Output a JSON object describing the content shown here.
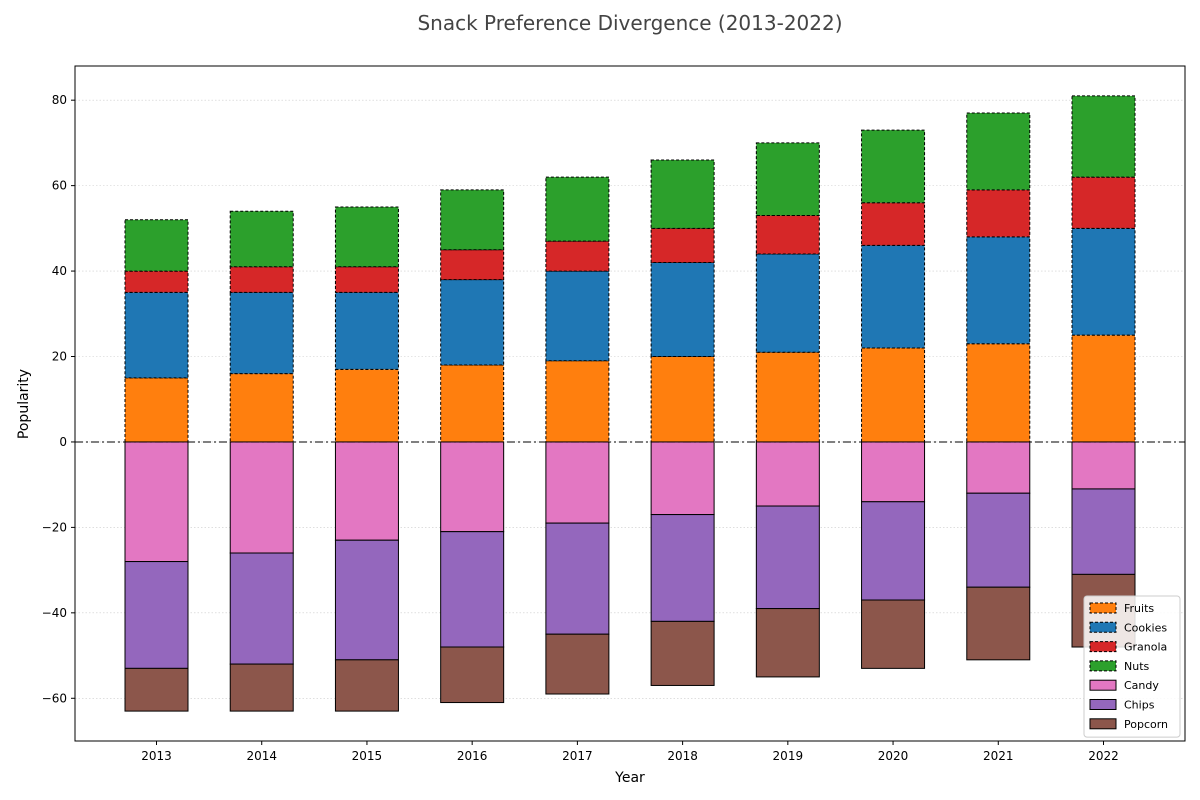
{
  "chart_data": {
    "type": "bar",
    "stacked": true,
    "diverging": true,
    "title": "Snack Preference Divergence (2013-2022)",
    "xlabel": "Year",
    "ylabel": "Popularity",
    "ylim": [
      -70,
      88
    ],
    "yticks": [
      -60,
      -40,
      -20,
      0,
      20,
      40,
      60,
      80
    ],
    "grid": true,
    "legend_position": "lower-right",
    "categories": [
      "2013",
      "2014",
      "2015",
      "2016",
      "2017",
      "2018",
      "2019",
      "2020",
      "2021",
      "2022"
    ],
    "series": [
      {
        "name": "Fruits",
        "color": "#ff7f0e",
        "direction": "positive",
        "values": [
          15,
          16,
          17,
          18,
          19,
          20,
          21,
          22,
          23,
          25
        ]
      },
      {
        "name": "Cookies",
        "color": "#1f77b4",
        "direction": "positive",
        "values": [
          20,
          19,
          18,
          20,
          21,
          22,
          23,
          24,
          25,
          25
        ]
      },
      {
        "name": "Granola",
        "color": "#d62728",
        "direction": "positive",
        "values": [
          5,
          6,
          6,
          7,
          7,
          8,
          9,
          10,
          11,
          12
        ]
      },
      {
        "name": "Nuts",
        "color": "#2ca02c",
        "direction": "positive",
        "values": [
          12,
          13,
          14,
          14,
          15,
          16,
          17,
          17,
          18,
          19
        ]
      },
      {
        "name": "Candy",
        "color": "#e377c2",
        "direction": "negative",
        "values": [
          -28,
          -26,
          -23,
          -21,
          -19,
          -17,
          -15,
          -14,
          -12,
          -11
        ]
      },
      {
        "name": "Chips",
        "color": "#9467bd",
        "direction": "negative",
        "values": [
          -25,
          -26,
          -28,
          -27,
          -26,
          -25,
          -24,
          -23,
          -22,
          -20
        ]
      },
      {
        "name": "Popcorn",
        "color": "#8c564b",
        "direction": "negative",
        "values": [
          -10,
          -11,
          -12,
          -13,
          -14,
          -15,
          -16,
          -16,
          -17,
          -17
        ]
      }
    ]
  }
}
